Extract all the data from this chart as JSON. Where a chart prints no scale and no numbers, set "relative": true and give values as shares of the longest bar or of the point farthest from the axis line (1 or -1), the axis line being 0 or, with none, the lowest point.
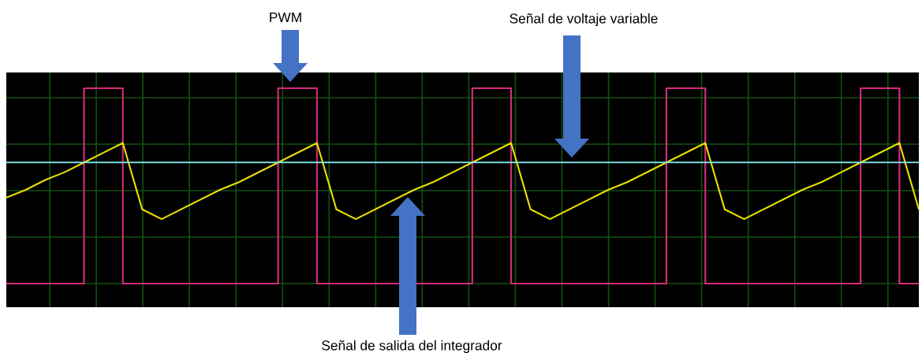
{
  "chart_data": {
    "type": "line",
    "relative": true,
    "grid": true,
    "categories": [
      null,
      null,
      null,
      null,
      null,
      null,
      null,
      null,
      null,
      null,
      null,
      null,
      null,
      null,
      null,
      null,
      null,
      null,
      null,
      null,
      null,
      null,
      null,
      null,
      null,
      null,
      null,
      null,
      null,
      null,
      null,
      null,
      null,
      null,
      null,
      null,
      null,
      null,
      null,
      null,
      null,
      null,
      null,
      null,
      null,
      null,
      null,
      null
    ],
    "series": [
      {
        "type": "step",
        "color": "#d62a7c",
        "values": [
          0,
          0,
          0,
          0,
          1,
          1,
          0,
          0,
          0,
          0,
          0,
          0,
          0,
          0,
          1,
          1,
          0,
          0,
          0,
          0,
          0,
          0,
          0,
          0,
          1,
          1,
          0,
          0,
          0,
          0,
          0,
          0,
          0,
          0,
          1,
          1,
          0,
          0,
          0,
          0,
          0,
          0,
          0,
          0,
          1,
          1,
          0,
          0
        ]
      },
      {
        "type": "line",
        "color": "#e6e000",
        "values": [
          0.44,
          0.48,
          0.53,
          0.57,
          0.62,
          0.67,
          0.72,
          0.38,
          0.33,
          0.38,
          0.43,
          0.48,
          0.52,
          0.57,
          0.62,
          0.67,
          0.72,
          0.38,
          0.33,
          0.38,
          0.43,
          0.48,
          0.52,
          0.57,
          0.62,
          0.67,
          0.72,
          0.38,
          0.33,
          0.38,
          0.43,
          0.48,
          0.52,
          0.57,
          0.62,
          0.67,
          0.72,
          0.38,
          0.33,
          0.38,
          0.43,
          0.48,
          0.52,
          0.57,
          0.62,
          0.67,
          0.72,
          0.38
        ]
      },
      {
        "type": "line",
        "color": "#80e4e4",
        "values": [
          0.62,
          0.62,
          0.62,
          0.62,
          0.62,
          0.62,
          0.62,
          0.62,
          0.62,
          0.62,
          0.62,
          0.62,
          0.62,
          0.62,
          0.62,
          0.62,
          0.62,
          0.62,
          0.62,
          0.62,
          0.62,
          0.62,
          0.62,
          0.62,
          0.62,
          0.62,
          0.62,
          0.62,
          0.62,
          0.62,
          0.62,
          0.62,
          0.62,
          0.62,
          0.62,
          0.62,
          0.62,
          0.62,
          0.62,
          0.62,
          0.62,
          0.62,
          0.62,
          0.62,
          0.62,
          0.62,
          0.62,
          0.62
        ]
      }
    ],
    "annotations": [
      "PWM",
      "Señal de voltaje variable",
      "Señal de salida del integrador"
    ]
  }
}
